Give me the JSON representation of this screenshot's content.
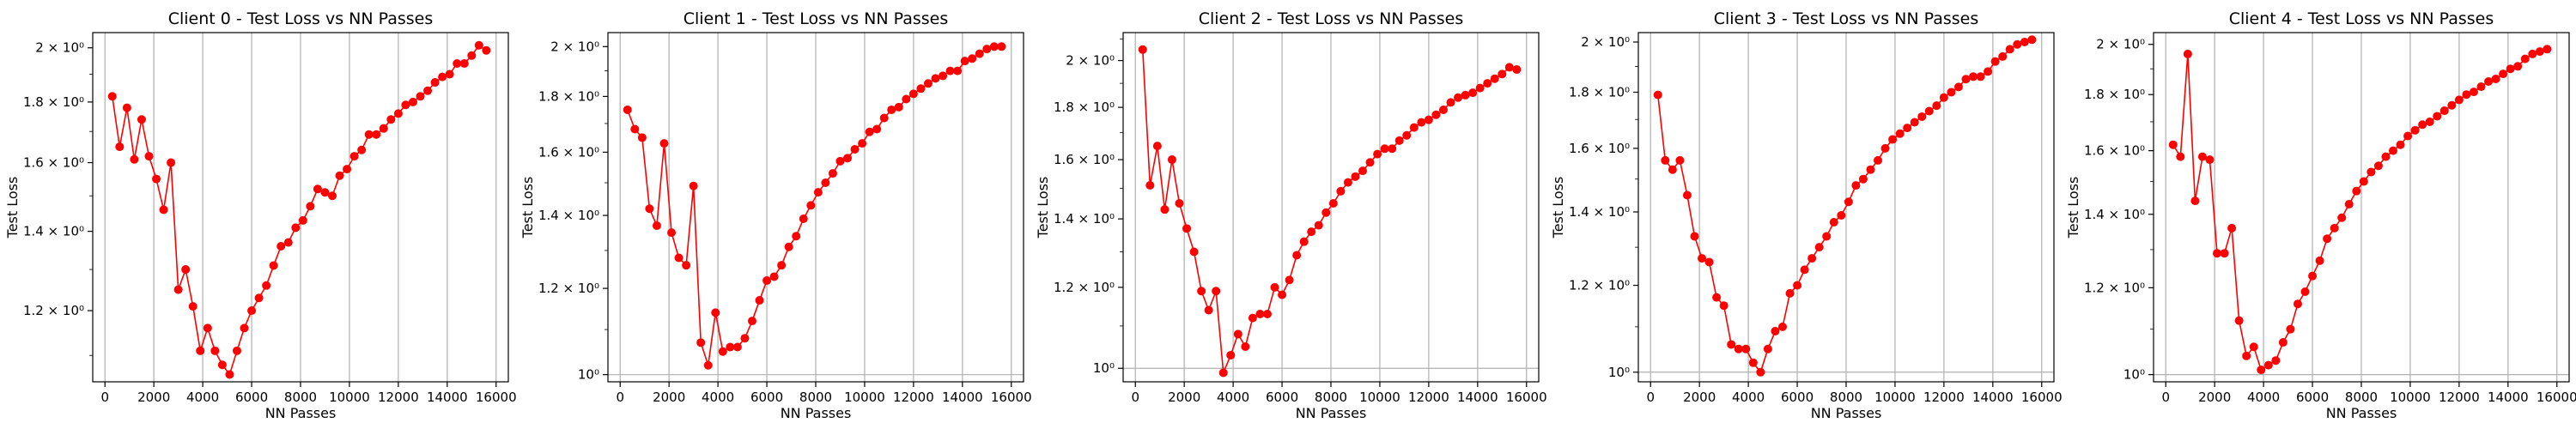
{
  "chart_data": [
    {
      "type": "line",
      "title": "Client 0 - Test Loss vs NN Passes",
      "xlabel": "NN Passes",
      "ylabel": "Test Loss",
      "yscale": "log",
      "xlim": [
        -500,
        16500
      ],
      "ylim": [
        1.045,
        2.06
      ],
      "xticks": [
        0,
        2000,
        4000,
        6000,
        8000,
        10000,
        12000,
        14000,
        16000
      ],
      "yticks": [
        1.2,
        1.4,
        1.6,
        1.8,
        2.0
      ],
      "yticklabels": [
        "1.2 × 10⁰",
        "1.4 × 10⁰",
        "1.6 × 10⁰",
        "1.8 × 10⁰",
        "2 × 10⁰"
      ],
      "grid": true,
      "color": "#ff0000",
      "series": [
        {
          "x": [
            300,
            600,
            900,
            1200,
            1500,
            1800,
            2100,
            2400,
            2700,
            3000,
            3300,
            3600,
            3900,
            4200,
            4500,
            4800,
            5100,
            5400,
            5700,
            6000,
            6300,
            6600,
            6900,
            7200,
            7500,
            7800,
            8100,
            8400,
            8700,
            9000,
            9300,
            9600,
            9900,
            10200,
            10500,
            10800,
            11100,
            11400,
            11700,
            12000,
            12300,
            12600,
            12900,
            13200,
            13500,
            13800,
            14100,
            14400,
            14700,
            15000,
            15300,
            15600
          ],
          "values": [
            1.82,
            1.65,
            1.78,
            1.61,
            1.74,
            1.62,
            1.55,
            1.46,
            1.6,
            1.25,
            1.3,
            1.21,
            1.11,
            1.16,
            1.11,
            1.08,
            1.06,
            1.11,
            1.16,
            1.2,
            1.23,
            1.26,
            1.31,
            1.36,
            1.37,
            1.41,
            1.43,
            1.47,
            1.52,
            1.51,
            1.5,
            1.56,
            1.58,
            1.62,
            1.64,
            1.69,
            1.69,
            1.71,
            1.74,
            1.76,
            1.79,
            1.8,
            1.82,
            1.84,
            1.87,
            1.89,
            1.9,
            1.94,
            1.94,
            1.97,
            2.01,
            1.99
          ]
        }
      ]
    },
    {
      "type": "line",
      "title": "Client 1 - Test Loss vs NN Passes",
      "xlabel": "NN Passes",
      "ylabel": "Test Loss",
      "yscale": "log",
      "xlim": [
        -500,
        16500
      ],
      "ylim": [
        0.985,
        2.06
      ],
      "xticks": [
        0,
        2000,
        4000,
        6000,
        8000,
        10000,
        12000,
        14000,
        16000
      ],
      "yticks": [
        1.0,
        1.2,
        1.4,
        1.6,
        1.8,
        2.0
      ],
      "yticklabels": [
        "10⁰",
        "1.2 × 10⁰",
        "1.4 × 10⁰",
        "1.6 × 10⁰",
        "1.8 × 10⁰",
        "2 × 10⁰"
      ],
      "grid": true,
      "color": "#ff0000",
      "series": [
        {
          "x": [
            300,
            600,
            900,
            1200,
            1500,
            1800,
            2100,
            2400,
            2700,
            3000,
            3300,
            3600,
            3900,
            4200,
            4500,
            4800,
            5100,
            5400,
            5700,
            6000,
            6300,
            6600,
            6900,
            7200,
            7500,
            7800,
            8100,
            8400,
            8700,
            9000,
            9300,
            9600,
            9900,
            10200,
            10500,
            10800,
            11100,
            11400,
            11700,
            12000,
            12300,
            12600,
            12900,
            13200,
            13500,
            13800,
            14100,
            14400,
            14700,
            15000,
            15300,
            15600
          ],
          "values": [
            1.75,
            1.68,
            1.65,
            1.42,
            1.37,
            1.63,
            1.35,
            1.28,
            1.26,
            1.49,
            1.07,
            1.02,
            1.14,
            1.05,
            1.06,
            1.06,
            1.08,
            1.12,
            1.17,
            1.22,
            1.23,
            1.26,
            1.31,
            1.34,
            1.39,
            1.43,
            1.47,
            1.5,
            1.53,
            1.57,
            1.58,
            1.61,
            1.63,
            1.67,
            1.68,
            1.72,
            1.75,
            1.76,
            1.79,
            1.81,
            1.83,
            1.85,
            1.87,
            1.88,
            1.9,
            1.9,
            1.94,
            1.95,
            1.97,
            1.99,
            2.0,
            2.0
          ]
        }
      ]
    },
    {
      "type": "line",
      "title": "Client 2 - Test Loss vs NN Passes",
      "xlabel": "NN Passes",
      "ylabel": "Test Loss",
      "yscale": "log",
      "xlim": [
        -500,
        16500
      ],
      "ylim": [
        0.97,
        2.13
      ],
      "xticks": [
        0,
        2000,
        4000,
        6000,
        8000,
        10000,
        12000,
        14000,
        16000
      ],
      "yticks": [
        1.0,
        1.2,
        1.4,
        1.6,
        1.8,
        2.0
      ],
      "yticklabels": [
        "10⁰",
        "1.2 × 10⁰",
        "1.4 × 10⁰",
        "1.6 × 10⁰",
        "1.8 × 10⁰",
        "2 × 10⁰"
      ],
      "grid": true,
      "color": "#ff0000",
      "series": [
        {
          "x": [
            300,
            600,
            900,
            1200,
            1500,
            1800,
            2100,
            2400,
            2700,
            3000,
            3300,
            3600,
            3900,
            4200,
            4500,
            4800,
            5100,
            5400,
            5700,
            6000,
            6300,
            6600,
            6900,
            7200,
            7500,
            7800,
            8100,
            8400,
            8700,
            9000,
            9300,
            9600,
            9900,
            10200,
            10500,
            10800,
            11100,
            11400,
            11700,
            12000,
            12300,
            12600,
            12900,
            13200,
            13500,
            13800,
            14100,
            14400,
            14700,
            15000,
            15300,
            15600
          ],
          "values": [
            2.05,
            1.51,
            1.65,
            1.43,
            1.6,
            1.45,
            1.37,
            1.3,
            1.19,
            1.14,
            1.19,
            0.99,
            1.03,
            1.08,
            1.05,
            1.12,
            1.13,
            1.13,
            1.2,
            1.18,
            1.22,
            1.29,
            1.33,
            1.36,
            1.38,
            1.42,
            1.45,
            1.49,
            1.52,
            1.54,
            1.56,
            1.59,
            1.62,
            1.64,
            1.64,
            1.67,
            1.69,
            1.72,
            1.74,
            1.75,
            1.77,
            1.79,
            1.82,
            1.84,
            1.85,
            1.86,
            1.88,
            1.9,
            1.92,
            1.94,
            1.97,
            1.96
          ]
        }
      ]
    },
    {
      "type": "line",
      "title": "Client 3 - Test Loss vs NN Passes",
      "xlabel": "NN Passes",
      "ylabel": "Test Loss",
      "yscale": "log",
      "xlim": [
        -500,
        16500
      ],
      "ylim": [
        0.98,
        2.04
      ],
      "xticks": [
        0,
        2000,
        4000,
        6000,
        8000,
        10000,
        12000,
        14000,
        16000
      ],
      "yticks": [
        1.0,
        1.2,
        1.4,
        1.6,
        1.8,
        2.0
      ],
      "yticklabels": [
        "10⁰",
        "1.2 × 10⁰",
        "1.4 × 10⁰",
        "1.6 × 10⁰",
        "1.8 × 10⁰",
        "2 × 10⁰"
      ],
      "grid": true,
      "color": "#ff0000",
      "series": [
        {
          "x": [
            300,
            600,
            900,
            1200,
            1500,
            1800,
            2100,
            2400,
            2700,
            3000,
            3300,
            3600,
            3900,
            4200,
            4500,
            4800,
            5100,
            5400,
            5700,
            6000,
            6300,
            6600,
            6900,
            7200,
            7500,
            7800,
            8100,
            8400,
            8700,
            9000,
            9300,
            9600,
            9900,
            10200,
            10500,
            10800,
            11100,
            11400,
            11700,
            12000,
            12300,
            12600,
            12900,
            13200,
            13500,
            13800,
            14100,
            14400,
            14700,
            15000,
            15300,
            15600
          ],
          "values": [
            1.79,
            1.56,
            1.53,
            1.56,
            1.45,
            1.33,
            1.27,
            1.26,
            1.17,
            1.15,
            1.06,
            1.05,
            1.05,
            1.02,
            1.0,
            1.05,
            1.09,
            1.1,
            1.18,
            1.2,
            1.24,
            1.27,
            1.3,
            1.33,
            1.37,
            1.39,
            1.43,
            1.48,
            1.5,
            1.53,
            1.56,
            1.6,
            1.63,
            1.65,
            1.67,
            1.69,
            1.71,
            1.73,
            1.75,
            1.78,
            1.8,
            1.82,
            1.85,
            1.86,
            1.86,
            1.88,
            1.92,
            1.94,
            1.97,
            1.99,
            2.0,
            2.01
          ]
        }
      ]
    },
    {
      "type": "line",
      "title": "Client 4 - Test Loss vs NN Passes",
      "xlabel": "NN Passes",
      "ylabel": "Test Loss",
      "yscale": "log",
      "xlim": [
        -500,
        16500
      ],
      "ylim": [
        0.985,
        2.05
      ],
      "xticks": [
        0,
        2000,
        4000,
        6000,
        8000,
        10000,
        12000,
        14000,
        16000
      ],
      "yticks": [
        1.0,
        1.2,
        1.4,
        1.6,
        1.8,
        2.0
      ],
      "yticklabels": [
        "10⁰",
        "1.2 × 10⁰",
        "1.4 × 10⁰",
        "1.6 × 10⁰",
        "1.8 × 10⁰",
        "2 × 10⁰"
      ],
      "grid": true,
      "color": "#ff0000",
      "series": [
        {
          "x": [
            300,
            600,
            900,
            1200,
            1500,
            1800,
            2100,
            2400,
            2700,
            3000,
            3300,
            3600,
            3900,
            4200,
            4500,
            4800,
            5100,
            5400,
            5700,
            6000,
            6300,
            6600,
            6900,
            7200,
            7500,
            7800,
            8100,
            8400,
            8700,
            9000,
            9300,
            9600,
            9900,
            10200,
            10500,
            10800,
            11100,
            11400,
            11700,
            12000,
            12300,
            12600,
            12900,
            13200,
            13500,
            13800,
            14100,
            14400,
            14700,
            15000,
            15300,
            15600
          ],
          "values": [
            1.62,
            1.58,
            1.96,
            1.44,
            1.58,
            1.57,
            1.29,
            1.29,
            1.36,
            1.12,
            1.04,
            1.06,
            1.01,
            1.02,
            1.03,
            1.07,
            1.1,
            1.16,
            1.19,
            1.23,
            1.27,
            1.33,
            1.36,
            1.39,
            1.43,
            1.47,
            1.5,
            1.53,
            1.55,
            1.58,
            1.6,
            1.62,
            1.65,
            1.67,
            1.69,
            1.7,
            1.72,
            1.74,
            1.76,
            1.78,
            1.8,
            1.81,
            1.83,
            1.85,
            1.86,
            1.88,
            1.9,
            1.91,
            1.94,
            1.96,
            1.97,
            1.98
          ]
        }
      ]
    }
  ]
}
